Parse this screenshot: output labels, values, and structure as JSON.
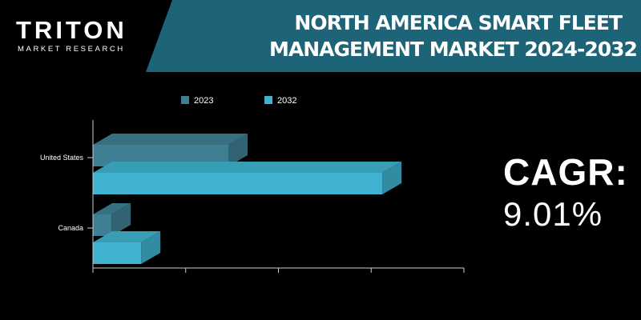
{
  "brand": {
    "name": "TRITON",
    "subtitle": "MARKET RESEARCH"
  },
  "title": {
    "line1": "NORTH AMERICA SMART FLEET",
    "line2": "MANAGEMENT MARKET 2024-2032"
  },
  "cagr": {
    "label": "CAGR:",
    "value": "9.01%"
  },
  "colors": {
    "banner": "#1d6478",
    "series_2023": "#3f7f93",
    "series_2032": "#3fb3cf",
    "axis": "#cccccc"
  },
  "chart_data": {
    "type": "bar",
    "orientation": "horizontal",
    "categories": [
      "United States",
      "Canada"
    ],
    "series": [
      {
        "name": "2023",
        "values": [
          7.3,
          1.0
        ]
      },
      {
        "name": "2032",
        "values": [
          15.6,
          2.6
        ]
      }
    ],
    "xlim": [
      0,
      20
    ],
    "grid": false,
    "legend_position": "top"
  }
}
